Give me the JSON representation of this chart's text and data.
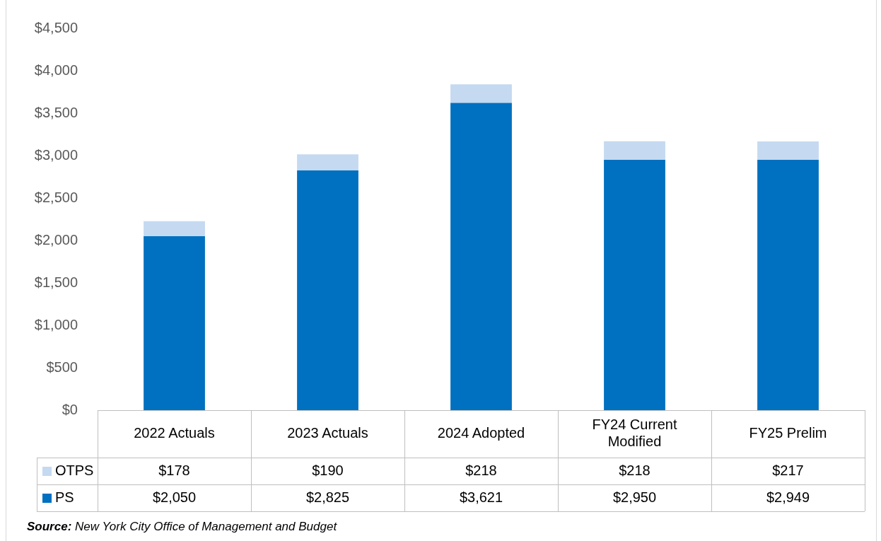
{
  "chart_data": {
    "type": "bar",
    "stacked": true,
    "categories": [
      "2022 Actuals",
      "2023 Actuals",
      "2024 Adopted",
      "FY24 Current Modified",
      "FY25 Prelim"
    ],
    "series": [
      {
        "name": "PS",
        "color": "#0070c0",
        "values": [
          2050,
          2825,
          3621,
          2950,
          2949
        ],
        "value_labels": [
          "$2,050",
          "$2,825",
          "$3,621",
          "$2,950",
          "$2,949"
        ]
      },
      {
        "name": "OTPS",
        "color": "#c5d9f1",
        "values": [
          178,
          190,
          218,
          218,
          217
        ],
        "value_labels": [
          "$178",
          "$190",
          "$218",
          "$218",
          "$217"
        ]
      }
    ],
    "ylim": [
      0,
      4500
    ],
    "yticks": [
      {
        "value": 0,
        "label": "$0"
      },
      {
        "value": 500,
        "label": "$500"
      },
      {
        "value": 1000,
        "label": "$1,000"
      },
      {
        "value": 1500,
        "label": "$1,500"
      },
      {
        "value": 2000,
        "label": "$2,000"
      },
      {
        "value": 2500,
        "label": "$2,500"
      },
      {
        "value": 3000,
        "label": "$3,000"
      },
      {
        "value": 3500,
        "label": "$3,500"
      },
      {
        "value": 4000,
        "label": "$4,000"
      },
      {
        "value": 4500,
        "label": "$4,500"
      }
    ],
    "grid": false,
    "legend": "bottom",
    "annotations": [
      "Source: New York City Office of Management and Budget"
    ]
  }
}
